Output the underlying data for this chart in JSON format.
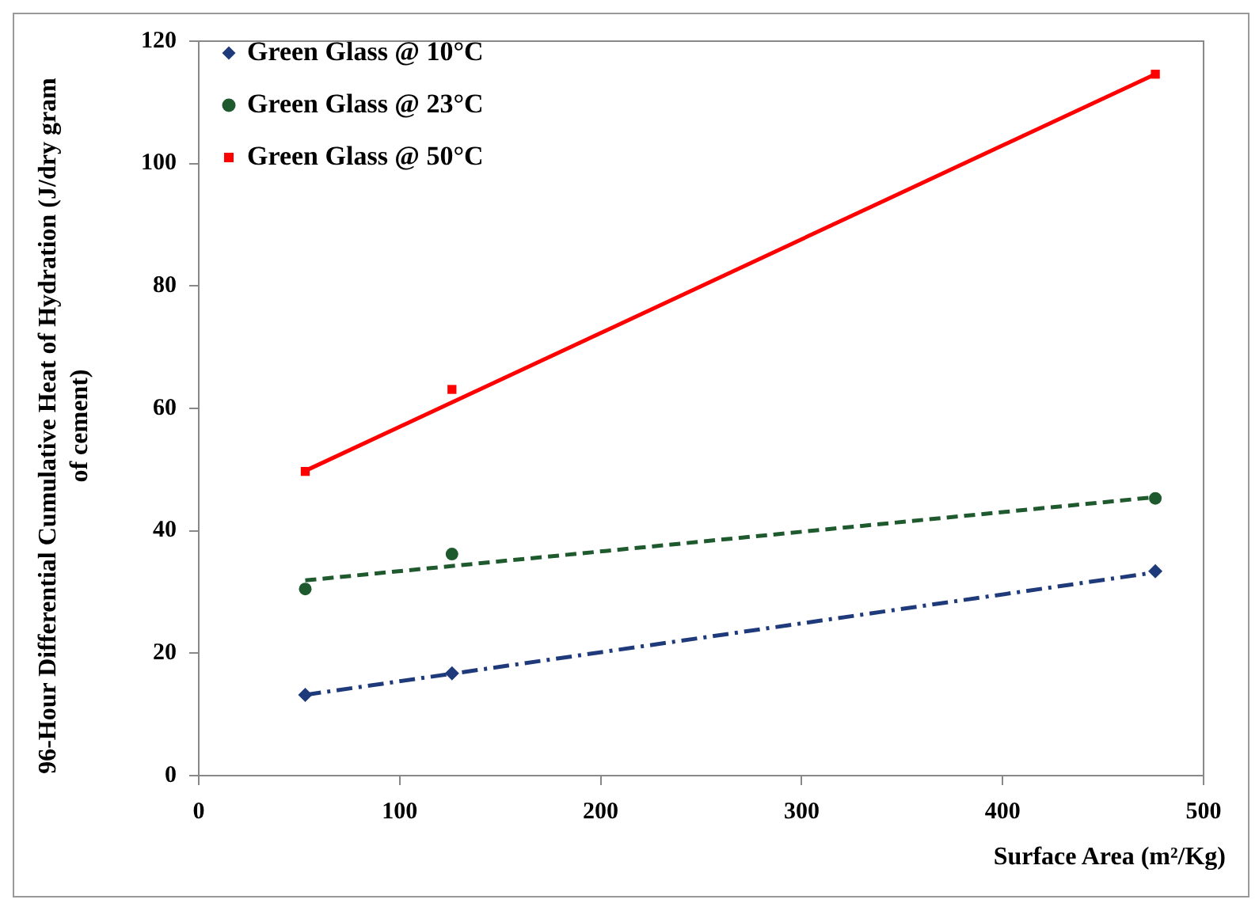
{
  "chart_data": {
    "type": "scatter",
    "xlabel": "Surface Area (m²/Kg)",
    "ylabel": "96-Hour Differential Cumulative Heat of Hydration (J/dry gram of cement)",
    "xlim": [
      0,
      500
    ],
    "xticks": [
      0,
      100,
      200,
      300,
      400,
      500
    ],
    "ylim": [
      0,
      120
    ],
    "yticks": [
      0,
      20,
      40,
      60,
      80,
      100,
      120
    ],
    "grid": false,
    "legend": "top left",
    "series": [
      {
        "name": "Green Glass @ 10°C",
        "marker": "diamond",
        "color": "#1f3a7a",
        "x": [
          53,
          126,
          476
        ],
        "values": [
          13.2,
          16.7,
          33.4
        ]
      },
      {
        "name": "Green Glass @ 23°C",
        "marker": "circle",
        "color": "#1e5a2e",
        "x": [
          53,
          126,
          476
        ],
        "values": [
          30.5,
          36.2,
          45.3
        ]
      },
      {
        "name": "Green Glass @ 50°C",
        "marker": "square",
        "color": "#ff0000",
        "x": [
          53,
          126,
          476
        ],
        "values": [
          49.7,
          63.1,
          114.6
        ]
      },
      {
        "type": "line",
        "marker": "none",
        "line_style": "dashdot",
        "color": "#1f3a7a",
        "x": [
          53,
          476
        ],
        "values": [
          13.2,
          33.2
        ]
      },
      {
        "type": "line",
        "marker": "none",
        "line_style": "dashed",
        "color": "#1e5a2e",
        "x": [
          53,
          476
        ],
        "values": [
          31.9,
          45.5
        ]
      },
      {
        "type": "line",
        "marker": "none",
        "line_style": "solid",
        "color": "#ff0000",
        "x": [
          53,
          476
        ],
        "values": [
          49.8,
          114.6
        ]
      }
    ]
  }
}
